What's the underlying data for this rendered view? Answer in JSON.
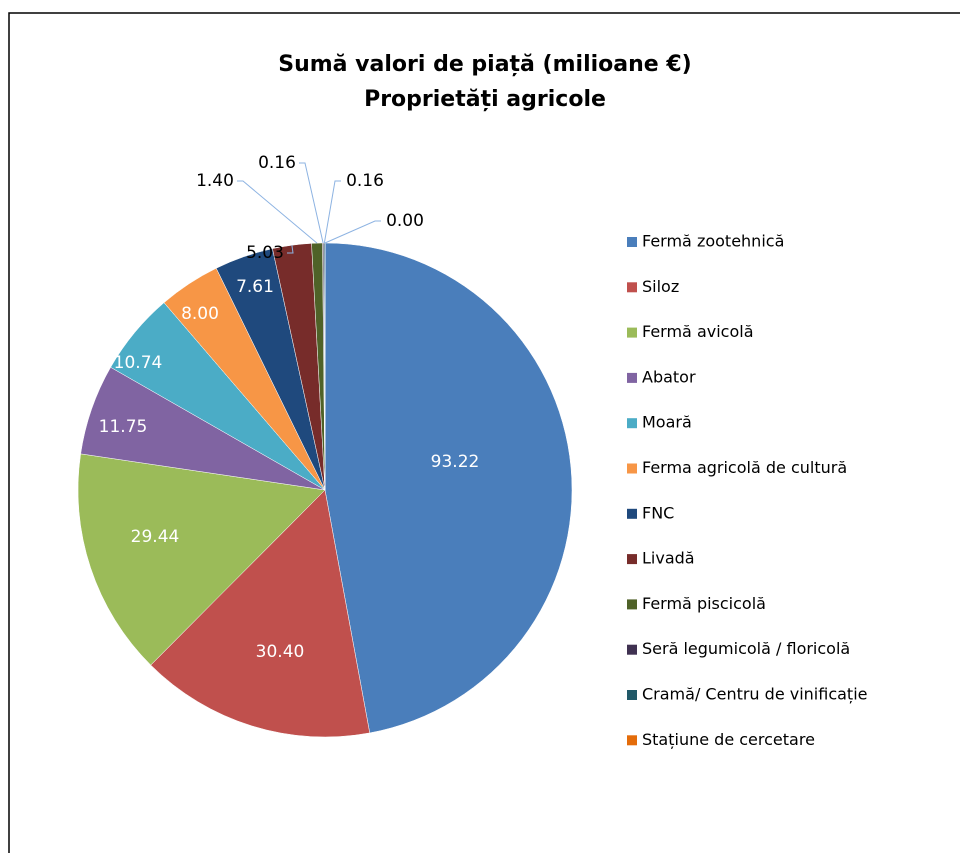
{
  "chart_data": {
    "type": "pie",
    "title": "Sumă valori de piață (milioane €)",
    "subtitle": "Proprietăți agricole",
    "categories": [
      "Fermă zootehnică",
      "Siloz",
      "Fermă avicolă",
      "Abator",
      "Moară",
      "Ferma agricolă de cultură",
      "FNC",
      "Livadă",
      "Fermă piscicolă",
      "Seră legumicolă / floricolă",
      "Cramă/ Centru de vinificație",
      "Stațiune de cercetare"
    ],
    "values": [
      93.22,
      30.4,
      29.44,
      11.75,
      10.74,
      8.0,
      7.61,
      5.03,
      1.4,
      0.16,
      0.16,
      0.0
    ],
    "value_labels": [
      "93.22",
      "30.40",
      "29.44",
      "11.75",
      "10.74",
      "8.00",
      "7.61",
      "5.03",
      "1.40",
      "0.16",
      "0.16",
      "0.00"
    ],
    "colors": [
      "#4a7ebb",
      "#c0504d",
      "#9bbb59",
      "#8064a2",
      "#4bacc6",
      "#f79646",
      "#1f497d",
      "#772c2a",
      "#4f6228",
      "#3f3151",
      "#215968",
      "#e46c0a"
    ],
    "legend": "right"
  }
}
